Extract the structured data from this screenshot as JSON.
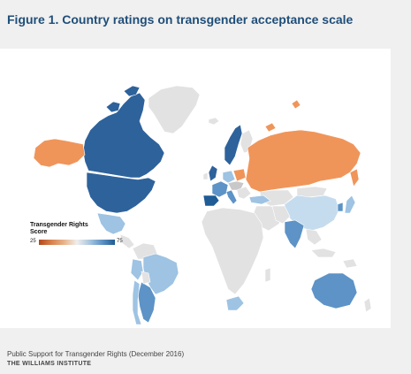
{
  "figure": {
    "title": "Figure 1. Country ratings on transgender acceptance scale"
  },
  "legend": {
    "title": "Transgender Rights Score",
    "min_label": "25",
    "max_label": "75",
    "scale_min": 25,
    "scale_max": 75,
    "low_color": "#c5521f",
    "high_color": "#1f5b94",
    "neutral_color": "#e2e2e2"
  },
  "source": {
    "report": "Public Support for Transgender Rights (December 2016)",
    "publisher": "THE WILLIAMS INSTITUTE"
  },
  "colors": {
    "title_blue": "#1f4e79",
    "russia_orange": "#f0955a",
    "dark_blue": "#2e629b",
    "mid_blue": "#5d93c6",
    "light_blue": "#9ec3e3",
    "pale_blue": "#c5dcee",
    "no_data_gray": "#e2e2e2"
  }
}
